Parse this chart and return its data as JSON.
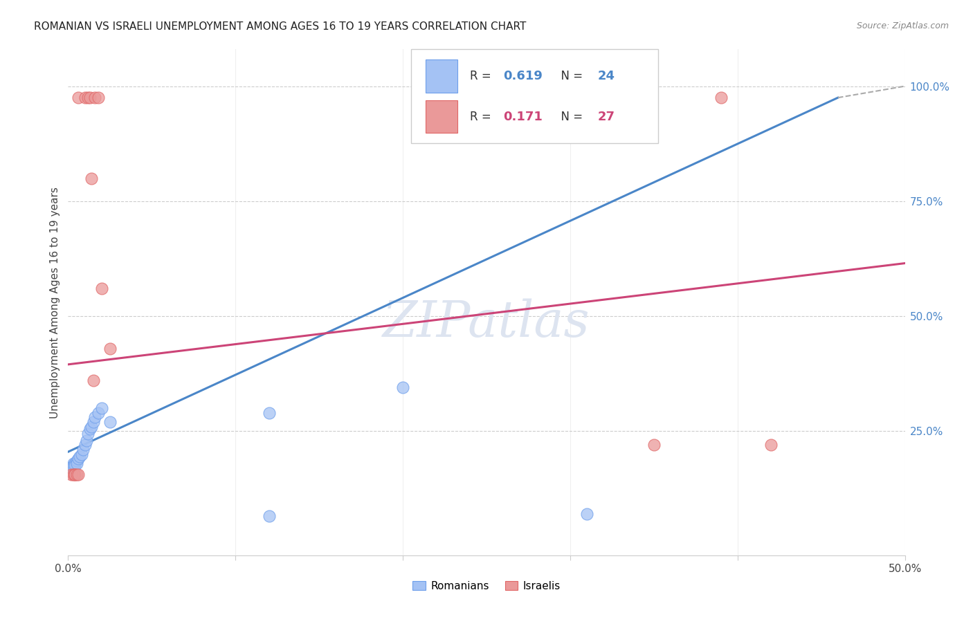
{
  "title": "ROMANIAN VS ISRAELI UNEMPLOYMENT AMONG AGES 16 TO 19 YEARS CORRELATION CHART",
  "source": "Source: ZipAtlas.com",
  "ylabel": "Unemployment Among Ages 16 to 19 years",
  "xlim": [
    0.0,
    0.5
  ],
  "ylim": [
    -0.02,
    1.08
  ],
  "legend_R_romanian": "0.619",
  "legend_N_romanian": "24",
  "legend_R_israeli": "0.171",
  "legend_N_israeli": "27",
  "romanian_color": "#a4c2f4",
  "romanian_edge_color": "#6d9eeb",
  "israeli_color": "#ea9999",
  "israeli_edge_color": "#e06666",
  "line_romanian_color": "#4a86c8",
  "line_israeli_color": "#cc4477",
  "watermark": "ZIPatlas",
  "background_color": "#ffffff",
  "grid_color": "#cccccc",
  "right_tick_color": "#4a86c8",
  "bottom_label_color": "#333333"
}
